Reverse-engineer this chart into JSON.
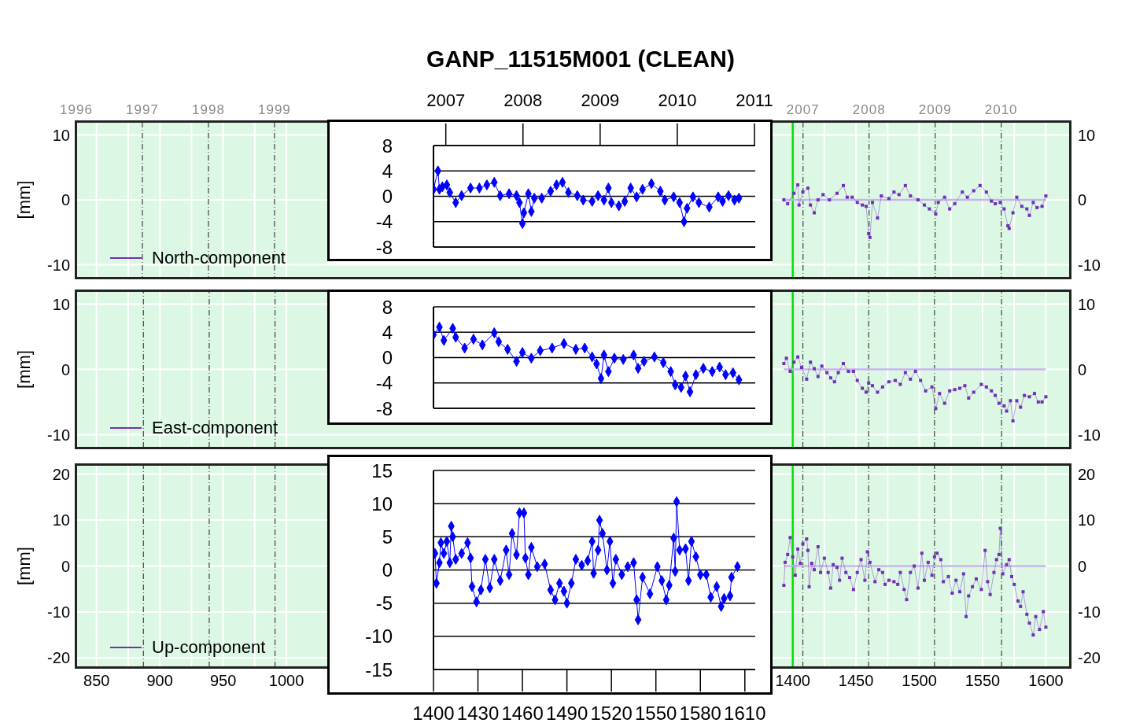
{
  "chart_data": [
    {
      "type": "line",
      "title": "GANP_11515M001 (CLEAN)",
      "ylabel": "[mm]",
      "xlim": [
        834,
        1619
      ],
      "xticks": [
        850,
        {
          "value": 875,
          "label": null
        },
        900,
        {
          "value": 925,
          "label": null
        },
        950,
        {
          "value": 975,
          "label": null
        },
        1000,
        1400,
        {
          "value": 1425,
          "label": null
        },
        1450,
        {
          "value": 1475,
          "label": null
        },
        1500,
        {
          "value": 1525,
          "label": null
        },
        1550,
        {
          "value": 1575,
          "label": null
        },
        1600
      ],
      "x2lim": [
        1996,
        2011.04
      ],
      "x2ticks": [
        1996,
        1997,
        1998,
        1999,
        2007,
        2008,
        2009,
        2010
      ],
      "ylim": [
        -12,
        12
      ],
      "yticks": [
        -10,
        0,
        10
      ],
      "y2lim": [
        -12,
        12
      ],
      "y2ticks": [
        -10,
        0,
        10
      ],
      "grid": true,
      "legend": "bottom left",
      "marker": "square",
      "tick_labels": "y",
      "ref_lines": [
        {
          "axis": "x",
          "value": 1400,
          "color": "#00e000"
        }
      ],
      "series": [
        {
          "type": "line",
          "color": "#c8b4ec",
          "marker": "none",
          "x": [
            1393,
            1600
          ],
          "values": [
            0,
            0
          ]
        },
        {
          "name": "North-component",
          "color": "#7030b8",
          "x": [
            1393,
            1396,
            1401,
            1404,
            1405,
            1408,
            1412,
            1414,
            1417,
            1420,
            1424,
            1429,
            1435,
            1440,
            1443,
            1447,
            1451,
            1455,
            1458,
            1460,
            1461,
            1463,
            1467,
            1470,
            1476,
            1480,
            1484,
            1489,
            1493,
            1499,
            1504,
            1508,
            1513,
            1515,
            1520,
            1524,
            1528,
            1534,
            1538,
            1543,
            1548,
            1553,
            1557,
            1560,
            1564,
            1567,
            1570,
            1571,
            1574,
            1577,
            1581,
            1585,
            1587,
            1590,
            1593,
            1597,
            1600
          ],
          "values": [
            0,
            -0.6,
            1.0,
            2.3,
            -0.8,
            1.2,
            1.8,
            -0.8,
            -2.0,
            0,
            0.8,
            0,
            1.0,
            2.2,
            0.4,
            0.4,
            -0.4,
            -0.8,
            -1.0,
            -5.2,
            -5.8,
            -0.4,
            -2.8,
            0.6,
            0.2,
            1.2,
            0.8,
            2.2,
            0.6,
            0,
            -0.8,
            -1.4,
            -2.2,
            -0.4,
            0.4,
            -1.4,
            -0.6,
            1.2,
            0.4,
            1.4,
            2.2,
            1.2,
            -0.2,
            -0.6,
            -0.4,
            -1.4,
            -4.0,
            -4.4,
            -2.0,
            0.4,
            -1.0,
            -1.4,
            -2.4,
            -0.4,
            -1.2,
            -1.0,
            0.6
          ]
        }
      ]
    },
    {
      "type": "line",
      "xlim": [
        1400,
        1617
      ],
      "x2lim": [
        2006.84,
        2011.01
      ],
      "x2ticks": [
        2007,
        2008,
        2009,
        2010,
        2011
      ],
      "ylim": [
        -8,
        8
      ],
      "yticks": [
        -8,
        -4,
        0,
        4,
        8
      ],
      "grid": "y",
      "marker": "diamond",
      "tick_labels": "y",
      "series": [
        {
          "color": "#0000ff",
          "x": [
            1400,
            1403,
            1404,
            1406,
            1409,
            1411,
            1415,
            1419,
            1425,
            1431,
            1436,
            1441,
            1445,
            1451,
            1456,
            1458,
            1460,
            1461,
            1464,
            1466,
            1468,
            1473,
            1479,
            1483,
            1487,
            1491,
            1497,
            1501,
            1507,
            1511,
            1515,
            1518,
            1520,
            1525,
            1529,
            1533,
            1537,
            1541,
            1547,
            1553,
            1556,
            1562,
            1566,
            1569,
            1571,
            1575,
            1579,
            1586,
            1592,
            1595,
            1599,
            1603,
            1606
          ],
          "values": [
            1.1,
            4.0,
            1.1,
            1.5,
            1.8,
            0.6,
            -1.0,
            0.1,
            1.3,
            1.3,
            1.8,
            2.2,
            0.1,
            0.4,
            0.1,
            -1.0,
            -4.3,
            -2.6,
            0.4,
            -2.4,
            -0.3,
            -0.3,
            0.8,
            1.8,
            2.2,
            0.6,
            0.1,
            -0.6,
            -0.8,
            0.1,
            -0.6,
            1.3,
            -1.0,
            -1.5,
            -0.8,
            1.3,
            -0.1,
            1.1,
            2.0,
            0.8,
            -0.6,
            -0.1,
            -1.0,
            -4.0,
            -1.9,
            -0.1,
            -1.0,
            -1.7,
            -0.1,
            -0.8,
            0.1,
            -0.6,
            -0.3
          ]
        }
      ]
    },
    {
      "type": "line",
      "xlim": [
        834,
        1619
      ],
      "xticks": [
        850,
        {
          "value": 875,
          "label": null
        },
        900,
        {
          "value": 925,
          "label": null
        },
        950,
        {
          "value": 975,
          "label": null
        },
        1000,
        1400,
        {
          "value": 1425,
          "label": null
        },
        1450,
        {
          "value": 1475,
          "label": null
        },
        1500,
        {
          "value": 1525,
          "label": null
        },
        1550,
        {
          "value": 1575,
          "label": null
        },
        1600
      ],
      "ylabel": "[mm]",
      "ylim": [
        -12,
        12
      ],
      "yticks": [
        -10,
        0,
        10
      ],
      "y2lim": [
        -12,
        12
      ],
      "y2ticks": [
        -10,
        0,
        10
      ],
      "grid": true,
      "legend": "bottom left",
      "marker": "square",
      "tick_labels": "y",
      "ref_lines": [
        {
          "axis": "x",
          "value": 1400,
          "color": "#00e000"
        },
        {
          "axis": "x",
          "value": 887,
          "color": "#404040",
          "line_style": "dashed"
        },
        {
          "axis": "x",
          "value": 939,
          "color": "#404040",
          "line_style": "dashed"
        },
        {
          "axis": "x",
          "value": 991,
          "color": "#404040",
          "line_style": "dashed"
        },
        {
          "axis": "x",
          "value": 1408,
          "color": "#404040",
          "line_style": "dashed"
        },
        {
          "axis": "x",
          "value": 1460,
          "color": "#404040",
          "line_style": "dashed"
        },
        {
          "axis": "x",
          "value": 1512,
          "color": "#404040",
          "line_style": "dashed"
        },
        {
          "axis": "x",
          "value": 1565,
          "color": "#404040",
          "line_style": "dashed"
        }
      ],
      "series": [
        {
          "type": "line",
          "color": "#c8b4ec",
          "marker": "none",
          "x": [
            1393,
            1600
          ],
          "values": [
            0,
            0
          ]
        },
        {
          "name": "East-component",
          "color": "#7030b8",
          "x": [
            1393,
            1395,
            1398,
            1401,
            1404,
            1407,
            1411,
            1414,
            1417,
            1420,
            1423,
            1427,
            1430,
            1433,
            1436,
            1440,
            1444,
            1448,
            1451,
            1455,
            1458,
            1460,
            1463,
            1467,
            1471,
            1476,
            1481,
            1485,
            1489,
            1493,
            1497,
            1501,
            1505,
            1510,
            1513,
            1516,
            1520,
            1524,
            1528,
            1532,
            1536,
            1539,
            1543,
            1549,
            1553,
            1557,
            1560,
            1563,
            1567,
            1569,
            1572,
            1574,
            1577,
            1580,
            1583,
            1587,
            1591,
            1594,
            1597,
            1600
          ],
          "values": [
            0.9,
            1.7,
            -0.3,
            1.1,
            1.9,
            0.3,
            -1.5,
            1.1,
            0.1,
            -1.1,
            0.5,
            -0.5,
            -1.3,
            -1.9,
            -0.5,
            0.9,
            -0.3,
            -0.3,
            -1.7,
            -2.9,
            -3.5,
            -2.1,
            -2.5,
            -3.5,
            -2.7,
            -1.9,
            -1.7,
            -2.3,
            -0.5,
            -1.5,
            -0.3,
            -1.7,
            -3.3,
            -2.7,
            -6.0,
            -3.7,
            -5.2,
            -3.3,
            -3.1,
            -2.9,
            -2.5,
            -4.4,
            -3.5,
            -2.3,
            -2.7,
            -3.3,
            -4.0,
            -5.2,
            -5.6,
            -6.4,
            -4.8,
            -7.9,
            -4.8,
            -5.8,
            -4.0,
            -4.2,
            -3.7,
            -5.0,
            -5.0,
            -4.2
          ]
        }
      ]
    },
    {
      "type": "line",
      "xlim": [
        1400,
        1617
      ],
      "ylim": [
        -8,
        8
      ],
      "yticks": [
        -8,
        -4,
        0,
        4,
        8
      ],
      "grid": "y",
      "marker": "diamond",
      "tick_labels": "y",
      "series": [
        {
          "color": "#0000ff",
          "x": [
            1400,
            1404,
            1407,
            1413,
            1415,
            1421,
            1427,
            1433,
            1441,
            1444,
            1450,
            1456,
            1460,
            1466,
            1472,
            1480,
            1488,
            1496,
            1502,
            1507,
            1510,
            1513,
            1515,
            1518,
            1522,
            1528,
            1535,
            1538,
            1542,
            1549,
            1555,
            1560,
            1563,
            1567,
            1570,
            1573,
            1577,
            1582,
            1588,
            1593,
            1597,
            1602,
            1606
          ],
          "values": [
            3.6,
            4.8,
            2.7,
            4.6,
            3.2,
            1.5,
            2.9,
            2.0,
            3.9,
            2.5,
            1.3,
            -0.6,
            0.8,
            -0.1,
            1.1,
            1.5,
            2.2,
            1.3,
            1.5,
            0.1,
            -1.0,
            -3.3,
            0.4,
            -2.2,
            -0.1,
            -0.3,
            0.4,
            -1.7,
            -0.6,
            0.1,
            -0.8,
            -2.2,
            -4.3,
            -4.7,
            -2.9,
            -5.4,
            -2.7,
            -1.7,
            -2.2,
            -1.5,
            -2.7,
            -2.4,
            -3.5
          ]
        }
      ]
    },
    {
      "type": "line",
      "xlim": [
        834,
        1619
      ],
      "xticks": [
        850,
        {
          "value": 875,
          "label": null
        },
        900,
        {
          "value": 925,
          "label": null
        },
        950,
        {
          "value": 975,
          "label": null
        },
        1000,
        1400,
        {
          "value": 1425,
          "label": null
        },
        1450,
        {
          "value": 1475,
          "label": null
        },
        1500,
        {
          "value": 1525,
          "label": null
        },
        1550,
        {
          "value": 1575,
          "label": null
        },
        1600
      ],
      "ylabel": "[mm]",
      "ylim": [
        -22,
        22
      ],
      "yticks": [
        -20,
        -10,
        0,
        10,
        20
      ],
      "y2lim": [
        -22,
        22
      ],
      "y2ticks": [
        -20,
        -10,
        0,
        10,
        20
      ],
      "grid": true,
      "legend": "bottom left",
      "marker": "square",
      "ref_lines": [
        {
          "axis": "x",
          "value": 1400,
          "color": "#00e000"
        },
        {
          "axis": "x",
          "value": 887,
          "color": "#404040",
          "line_style": "dashed"
        },
        {
          "axis": "x",
          "value": 939,
          "color": "#404040",
          "line_style": "dashed"
        },
        {
          "axis": "x",
          "value": 991,
          "color": "#404040",
          "line_style": "dashed"
        },
        {
          "axis": "x",
          "value": 1408,
          "color": "#404040",
          "line_style": "dashed"
        },
        {
          "axis": "x",
          "value": 1460,
          "color": "#404040",
          "line_style": "dashed"
        },
        {
          "axis": "x",
          "value": 1512,
          "color": "#404040",
          "line_style": "dashed"
        },
        {
          "axis": "x",
          "value": 1565,
          "color": "#404040",
          "line_style": "dashed"
        }
      ],
      "series": [
        {
          "type": "line",
          "color": "#c8b4ec",
          "marker": "none",
          "x": [
            1393,
            1600
          ],
          "values": [
            0,
            0
          ]
        },
        {
          "name": "Up-component",
          "color": "#7030b8",
          "x": [
            1393,
            1394,
            1396,
            1398,
            1400,
            1402,
            1404,
            1406,
            1408,
            1411,
            1412,
            1413,
            1415,
            1417,
            1420,
            1422,
            1425,
            1428,
            1430,
            1432,
            1435,
            1437,
            1439,
            1442,
            1445,
            1448,
            1451,
            1454,
            1457,
            1459,
            1461,
            1465,
            1468,
            1471,
            1473,
            1476,
            1480,
            1483,
            1485,
            1488,
            1490,
            1493,
            1496,
            1499,
            1502,
            1504,
            1507,
            1510,
            1512,
            1514,
            1517,
            1519,
            1523,
            1526,
            1529,
            1532,
            1535,
            1537,
            1539,
            1542,
            1545,
            1549,
            1552,
            1554,
            1556,
            1559,
            1561,
            1563,
            1564,
            1566,
            1569,
            1571,
            1573,
            1575,
            1578,
            1580,
            1582,
            1585,
            1587,
            1590,
            1592,
            1595,
            1598,
            1600
          ],
          "values": [
            -4.2,
            0.8,
            2.5,
            6.2,
            2.0,
            -2.0,
            3.7,
            0.6,
            4.8,
            5.9,
            3.4,
            -4.5,
            0.6,
            -0.8,
            4.2,
            -1.4,
            1.7,
            -1.4,
            -4.8,
            0.3,
            -0.3,
            -3.1,
            1.7,
            -1.4,
            -2.5,
            -5.1,
            -1.4,
            1.4,
            -3.1,
            3.1,
            0.8,
            -3.4,
            -0.8,
            -1.4,
            -4.0,
            -3.1,
            -3.4,
            -4.0,
            -1.4,
            -5.1,
            -7.3,
            -1.4,
            0,
            -4.8,
            2.8,
            -3.1,
            0.8,
            -2.0,
            2.0,
            2.8,
            1.4,
            -3.4,
            -2.3,
            -5.9,
            -3.1,
            -5.6,
            -1.7,
            -11.0,
            -6.5,
            -4.5,
            -2.8,
            -5.1,
            3.4,
            -3.4,
            -6.2,
            -1.4,
            1.4,
            2.5,
            8.2,
            -1.7,
            0.3,
            1.4,
            -2.3,
            -4.0,
            -7.6,
            -8.8,
            -5.6,
            -10.5,
            -12.4,
            -15.0,
            -11.0,
            -13.8,
            -9.9,
            -13.3
          ]
        }
      ]
    },
    {
      "type": "line",
      "xlim": [
        1400,
        1617
      ],
      "xticks": [
        1400,
        1430,
        1460,
        1490,
        1520,
        1550,
        1580,
        1610
      ],
      "ylim": [
        -15,
        15
      ],
      "yticks": [
        -15,
        -10,
        -5,
        0,
        5,
        10,
        15
      ],
      "grid": "y",
      "marker": "diamond",
      "series": [
        {
          "color": "#0000ff",
          "x": [
            1401,
            1402,
            1404,
            1405,
            1407,
            1409,
            1411,
            1412,
            1413,
            1415,
            1419,
            1423,
            1425,
            1426,
            1429,
            1432,
            1435,
            1438,
            1441,
            1445,
            1449,
            1451,
            1453,
            1456,
            1458,
            1461,
            1462,
            1464,
            1466,
            1470,
            1475,
            1479,
            1482,
            1485,
            1488,
            1490,
            1493,
            1496,
            1500,
            1504,
            1507,
            1508,
            1511,
            1512,
            1514,
            1517,
            1519,
            1521,
            1523,
            1527,
            1531,
            1535,
            1537,
            1538,
            1541,
            1546,
            1551,
            1554,
            1557,
            1559,
            1562,
            1563,
            1564,
            1566,
            1570,
            1572,
            1574,
            1577,
            1580,
            1584,
            1587,
            1591,
            1594,
            1596,
            1600,
            1601,
            1605
          ],
          "values": [
            2.5,
            -2.0,
            1.1,
            4.1,
            2.5,
            4.3,
            1.1,
            6.6,
            5.0,
            1.6,
            2.5,
            4.1,
            1.8,
            -2.5,
            -4.8,
            -3.0,
            1.6,
            -2.7,
            1.6,
            -1.6,
            3.0,
            -0.7,
            5.5,
            2.3,
            8.6,
            8.6,
            1.8,
            -0.7,
            3.4,
            0.5,
            0.9,
            -3.0,
            -4.5,
            -2.0,
            -3.2,
            -5.0,
            -2.0,
            1.6,
            0.7,
            1.4,
            4.3,
            -0.5,
            3.0,
            7.5,
            5.5,
            0.0,
            4.3,
            -2.0,
            1.6,
            -0.7,
            0.5,
            1.1,
            -4.5,
            -7.5,
            -1.1,
            -3.6,
            0.5,
            -1.6,
            -4.5,
            -2.3,
            4.8,
            -0.2,
            10.3,
            3.0,
            3.2,
            -1.6,
            4.3,
            2.0,
            -0.7,
            -0.7,
            -4.1,
            -2.5,
            -5.5,
            -4.3,
            -3.9,
            -1.1,
            0.5
          ]
        }
      ]
    }
  ]
}
